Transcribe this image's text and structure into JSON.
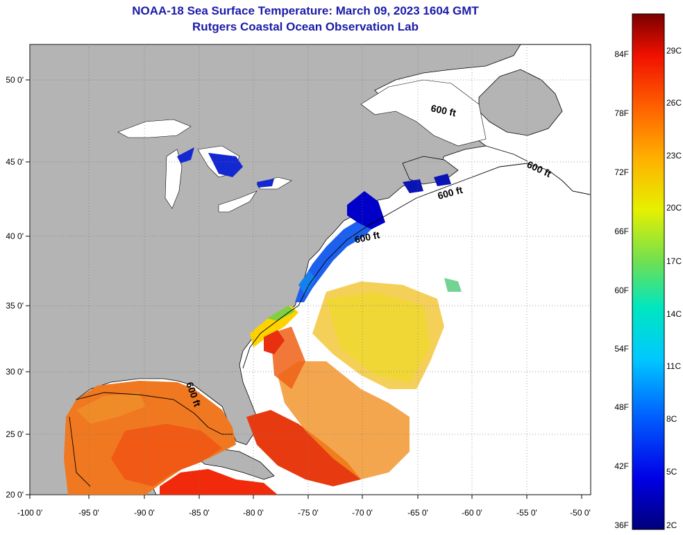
{
  "title": {
    "line1": "NOAA-18 Sea Surface Temperature:  March 09, 2023 1604 GMT",
    "line2": "Rutgers Coastal Ocean Observation Lab"
  },
  "axes": {
    "lon_ticks": [
      "-100 0'",
      "-95 0'",
      "-90 0'",
      "-85 0'",
      "-80 0'",
      "-75 0'",
      "-70 0'",
      "-65 0'",
      "-60 0'",
      "-55 0'",
      "-50 0'"
    ],
    "lat_ticks": [
      "20 0'",
      "25 0'",
      "30 0'",
      "35 0'",
      "40 0'",
      "45 0'",
      "50 0'"
    ]
  },
  "isobath_labels": [
    "600 ft",
    "600 ft",
    "600 ft",
    "600 ft",
    "600 ft"
  ],
  "colorbar": {
    "fahrenheit": [
      "84F",
      "78F",
      "72F",
      "66F",
      "60F",
      "54F",
      "48F",
      "42F",
      "36F"
    ],
    "celsius": [
      "29C",
      "26C",
      "23C",
      "20C",
      "17C",
      "14C",
      "11C",
      "8C",
      "5C",
      "2C"
    ]
  },
  "colors": {
    "land": "#b4b4b4",
    "ocean_nodata": "#ffffff",
    "title": "#1a1aa8"
  }
}
